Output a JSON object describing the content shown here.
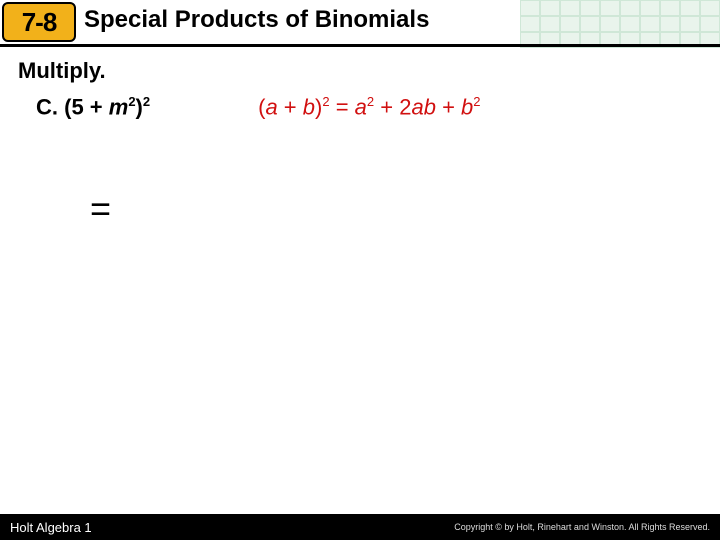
{
  "header": {
    "lesson_number": "7-8",
    "chapter_title": "Special Products of Binomials",
    "grid_color": "#e9f4ec",
    "grid_border": "#cfe7d7"
  },
  "content": {
    "instruction": "Multiply.",
    "problem": {
      "label_prefix": "C. (5 + ",
      "label_var": "m",
      "label_exp1": "2",
      "label_mid": ")",
      "label_exp2": "2"
    },
    "formula": {
      "p1": "(",
      "a1": "a",
      "p2": " + ",
      "b1": "b",
      "p3": ")",
      "e1": "2",
      "p4": " = ",
      "a2": "a",
      "e2": "2",
      "p5": " + 2",
      "a3": "a",
      "b2": "b",
      "p6": " + ",
      "b3": "b",
      "e3": "2"
    },
    "equals": "="
  },
  "footer": {
    "left": "Holt Algebra 1",
    "right": "Copyright © by Holt, Rinehart and Winston. All Rights Reserved."
  },
  "colors": {
    "badge_bg": "#f2b11a",
    "formula_color": "#d11010",
    "text_color": "#000000",
    "bg": "#ffffff"
  }
}
